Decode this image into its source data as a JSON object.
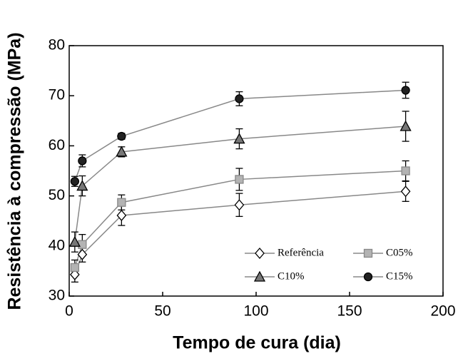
{
  "chart_data": {
    "type": "line",
    "xlabel": "Tempo de cura (dia)",
    "ylabel": "Resistência à compressão (MPa)",
    "x": [
      3,
      7,
      28,
      91,
      180
    ],
    "xlim": [
      0,
      200
    ],
    "xticks": [
      0,
      50,
      100,
      150,
      200
    ],
    "ylim": [
      30,
      80
    ],
    "yticks": [
      30,
      40,
      50,
      60,
      70,
      80
    ],
    "legend": "lower right",
    "series": [
      {
        "name": "Referência",
        "color": "#ffffff",
        "marker": "diamond",
        "values": [
          34.3,
          38.3,
          46.1,
          48.2,
          50.9
        ],
        "errors": [
          1.5,
          1.5,
          2,
          2.3,
          2
        ]
      },
      {
        "name": "C05%",
        "color": "#b3b3b3",
        "marker": "square",
        "values": [
          35.7,
          40.3,
          48.7,
          53.3,
          55
        ],
        "errors": [
          1.5,
          2,
          1.5,
          2.2,
          2
        ]
      },
      {
        "name": "C10%",
        "color": "#777777",
        "marker": "triangle",
        "values": [
          40.8,
          52,
          58.8,
          61.4,
          63.9
        ],
        "errors": [
          2,
          2,
          1,
          2,
          3
        ]
      },
      {
        "name": "C15%",
        "color": "#222222",
        "marker": "circle",
        "values": [
          52.9,
          57,
          61.9,
          69.4,
          71.1
        ],
        "errors": [
          1,
          1.2,
          0.6,
          1.4,
          1.6
        ]
      }
    ]
  }
}
